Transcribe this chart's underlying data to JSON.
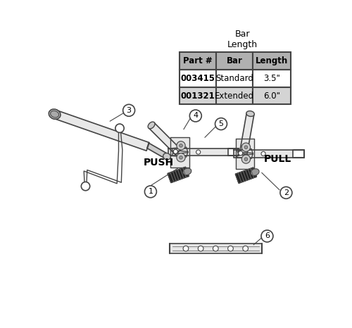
{
  "background_color": "#ffffff",
  "line_color": "#444444",
  "fill_light": "#e8e8e8",
  "fill_mid": "#cccccc",
  "fill_dark": "#999999",
  "fill_black": "#222222",
  "table_header_color": "#b0b0b0",
  "table_row1_color": "#ffffff",
  "table_row2_color": "#d4d4d4",
  "table_headers": [
    "Part #",
    "Bar",
    "Length"
  ],
  "table_rows": [
    [
      "003415",
      "Standard",
      "3.5\""
    ],
    [
      "001321",
      "Extended",
      "6.0\""
    ]
  ],
  "push_text": "PUSH",
  "pull_text": "PULL",
  "bar_length_text": "Bar\nLength"
}
